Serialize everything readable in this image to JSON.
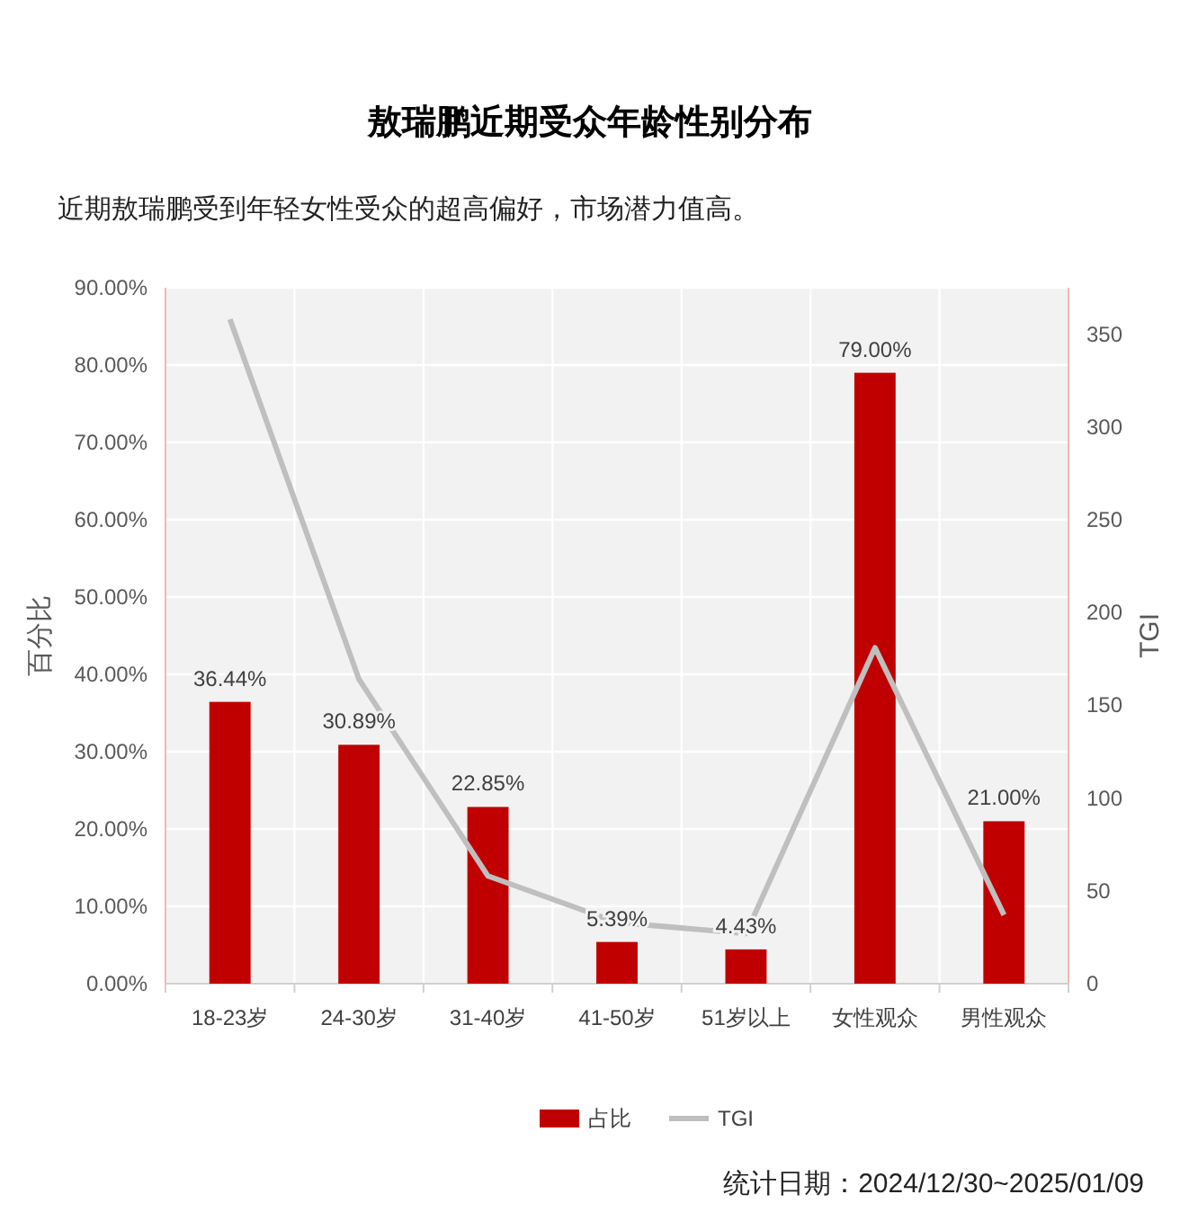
{
  "chart_data": {
    "type": "bar",
    "title": "敖瑞鹏近期受众年龄性别分布",
    "subtitle": "近期敖瑞鹏受到年轻女性受众的超高偏好，市场潜力值高。",
    "ylabel": "百分比",
    "y2label": "TGI",
    "categories": [
      "18-23岁",
      "24-30岁",
      "31-40岁",
      "41-50岁",
      "51岁以上",
      "女性观众",
      "男性观众"
    ],
    "series": [
      {
        "name": "占比",
        "color": "#c00000",
        "values": [
          36.44,
          30.89,
          22.85,
          5.39,
          4.43,
          79.0,
          21.0
        ],
        "value_labels": [
          "36.44%",
          "30.89%",
          "22.85%",
          "5.39%",
          "4.43%",
          "79.00%",
          "21.00%"
        ]
      },
      {
        "name": "TGI",
        "type": "line",
        "axis": "y2",
        "color": "#bfbfbf",
        "values": [
          358,
          164,
          58,
          33,
          27,
          181,
          37
        ]
      }
    ],
    "ylim": [
      0,
      90
    ],
    "yticks": [
      {
        "value": 0,
        "label": "0.00%"
      },
      {
        "value": 10,
        "label": "10.00%"
      },
      {
        "value": 20,
        "label": "20.00%"
      },
      {
        "value": 30,
        "label": "30.00%"
      },
      {
        "value": 40,
        "label": "40.00%"
      },
      {
        "value": 50,
        "label": "50.00%"
      },
      {
        "value": 60,
        "label": "60.00%"
      },
      {
        "value": 70,
        "label": "70.00%"
      },
      {
        "value": 80,
        "label": "80.00%"
      },
      {
        "value": 90,
        "label": "90.00%"
      }
    ],
    "y2lim": [
      0,
      375
    ],
    "y2ticks": [
      0,
      50,
      100,
      150,
      200,
      250,
      300,
      350
    ],
    "grid": true,
    "legend": "bottom",
    "marker": "none",
    "line_style": "solid",
    "annotations": [
      "统计日期：2024/12/30~2025/01/09"
    ]
  }
}
